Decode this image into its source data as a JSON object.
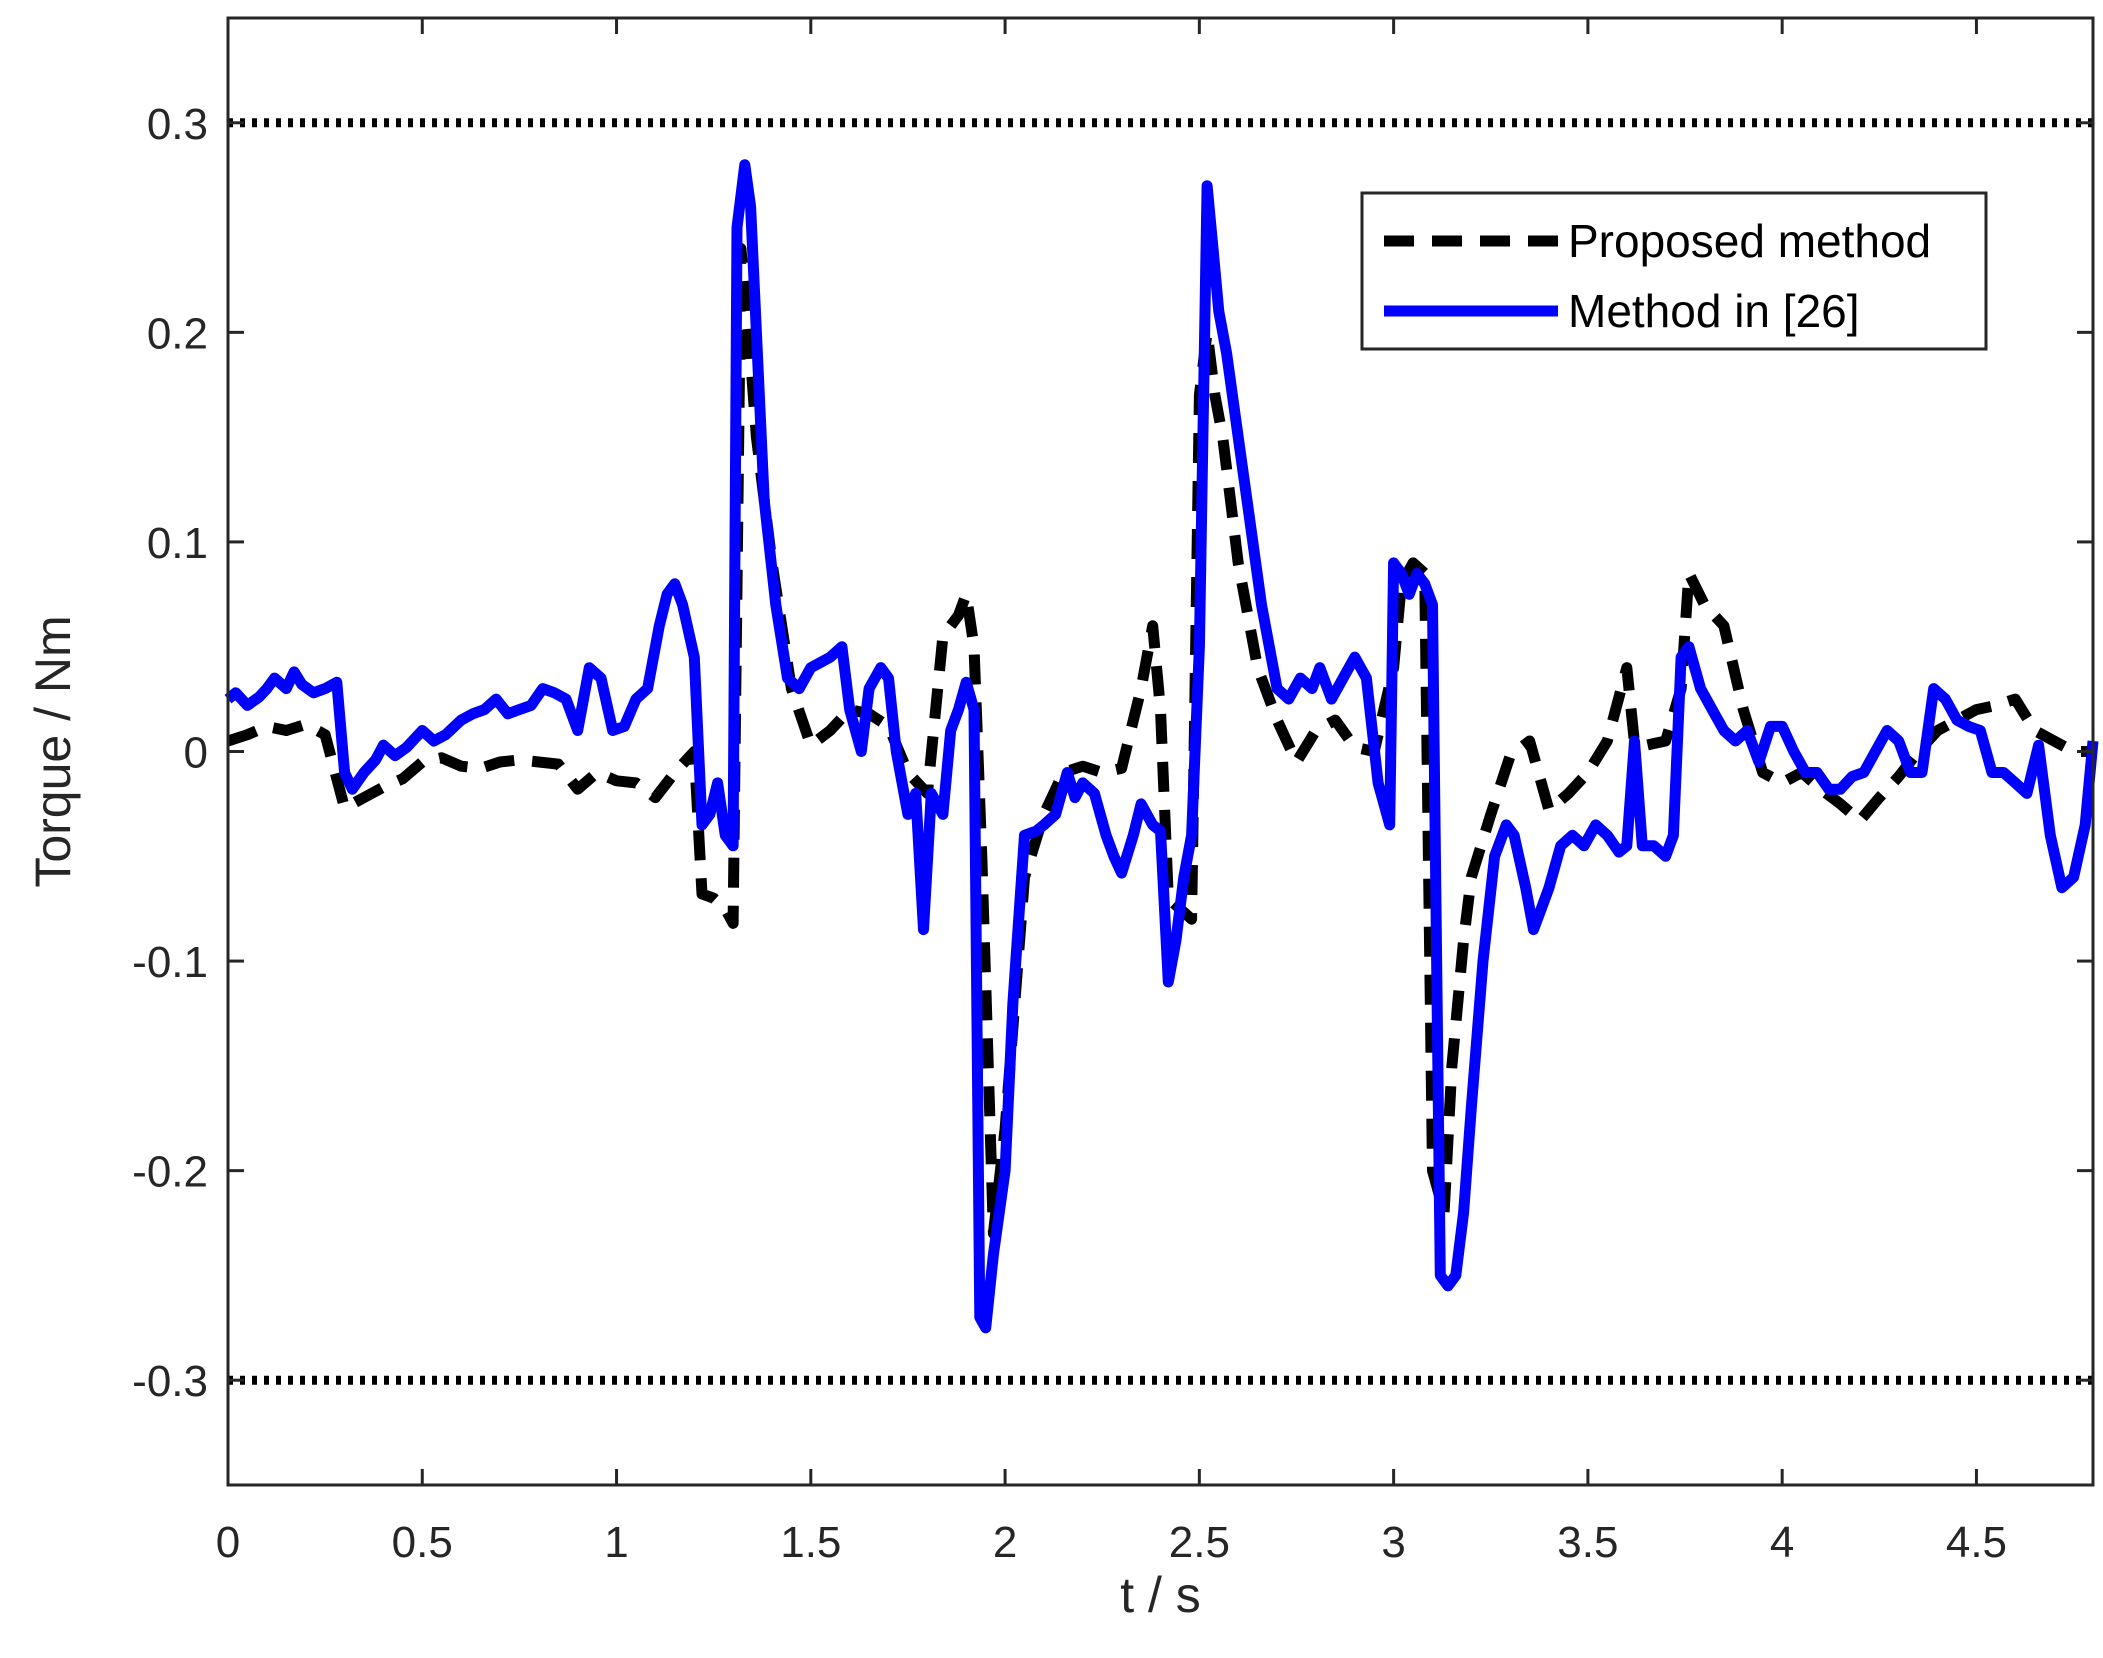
{
  "chart_data": {
    "type": "line",
    "xlabel": "t / s",
    "ylabel": "Torque / Nm",
    "xlim": [
      0,
      4.8
    ],
    "ylim": [
      -0.35,
      0.35
    ],
    "grid": false,
    "legend_position": "top-right",
    "x_ticks": [
      {
        "value": 0,
        "label": "0"
      },
      {
        "value": 0.5,
        "label": "0.5"
      },
      {
        "value": 1,
        "label": "1"
      },
      {
        "value": 1.5,
        "label": "1.5"
      },
      {
        "value": 2,
        "label": "2"
      },
      {
        "value": 2.5,
        "label": "2.5"
      },
      {
        "value": 3,
        "label": "3"
      },
      {
        "value": 3.5,
        "label": "3.5"
      },
      {
        "value": 4,
        "label": "4"
      },
      {
        "value": 4.5,
        "label": "4.5"
      }
    ],
    "y_ticks": [
      {
        "value": 0.3,
        "label": "0.3"
      },
      {
        "value": 0.2,
        "label": "0.2"
      },
      {
        "value": 0.1,
        "label": "0.1"
      },
      {
        "value": 0,
        "label": "0"
      },
      {
        "value": -0.1,
        "label": "-0.1"
      },
      {
        "value": -0.2,
        "label": "-0.2"
      },
      {
        "value": -0.3,
        "label": "-0.3"
      }
    ],
    "reference_lines": [
      {
        "y": 0.3,
        "style": "dotted",
        "color": "#000000"
      },
      {
        "y": -0.3,
        "style": "dotted",
        "color": "#000000"
      }
    ],
    "series": [
      {
        "name": "Proposed method",
        "color": "#000000",
        "style": "dashed",
        "x": [
          0,
          0.05,
          0.1,
          0.15,
          0.2,
          0.25,
          0.3,
          0.35,
          0.4,
          0.45,
          0.5,
          0.55,
          0.6,
          0.65,
          0.7,
          0.75,
          0.8,
          0.85,
          0.9,
          0.95,
          1.0,
          1.05,
          1.1,
          1.15,
          1.2,
          1.22,
          1.25,
          1.28,
          1.3,
          1.32,
          1.34,
          1.36,
          1.4,
          1.45,
          1.5,
          1.55,
          1.6,
          1.65,
          1.7,
          1.75,
          1.8,
          1.84,
          1.88,
          1.9,
          1.92,
          1.94,
          1.97,
          2.0,
          2.05,
          2.1,
          2.15,
          2.2,
          2.25,
          2.3,
          2.35,
          2.38,
          2.4,
          2.42,
          2.45,
          2.48,
          2.5,
          2.52,
          2.54,
          2.56,
          2.6,
          2.65,
          2.7,
          2.75,
          2.8,
          2.85,
          2.9,
          2.95,
          3.0,
          3.02,
          3.05,
          3.08,
          3.1,
          3.13,
          3.15,
          3.18,
          3.2,
          3.25,
          3.3,
          3.35,
          3.4,
          3.45,
          3.5,
          3.55,
          3.6,
          3.62,
          3.65,
          3.7,
          3.74,
          3.76,
          3.8,
          3.85,
          3.9,
          3.95,
          4.0,
          4.05,
          4.1,
          4.15,
          4.2,
          4.25,
          4.3,
          4.35,
          4.4,
          4.45,
          4.5,
          4.55,
          4.6,
          4.65,
          4.7,
          4.75,
          4.8
        ],
        "y": [
          0.005,
          0.008,
          0.012,
          0.01,
          0.013,
          0.008,
          -0.027,
          -0.022,
          -0.017,
          -0.013,
          -0.005,
          -0.003,
          -0.007,
          -0.008,
          -0.005,
          -0.004,
          -0.005,
          -0.006,
          -0.018,
          -0.01,
          -0.014,
          -0.015,
          -0.022,
          -0.01,
          0.0,
          -0.068,
          -0.07,
          -0.075,
          -0.082,
          0.24,
          0.2,
          0.15,
          0.09,
          0.03,
          0.003,
          0.01,
          0.02,
          0.018,
          0.012,
          -0.01,
          -0.02,
          0.055,
          0.065,
          0.075,
          0.05,
          -0.05,
          -0.23,
          -0.18,
          -0.06,
          -0.03,
          -0.01,
          -0.007,
          -0.01,
          -0.008,
          0.03,
          0.06,
          0.02,
          -0.07,
          -0.075,
          -0.08,
          0.17,
          0.2,
          0.17,
          0.15,
          0.09,
          0.04,
          0.015,
          -0.005,
          0.01,
          0.015,
          0.002,
          0.0,
          0.04,
          0.08,
          0.09,
          0.085,
          -0.2,
          -0.22,
          -0.15,
          -0.09,
          -0.06,
          -0.03,
          -0.002,
          0.005,
          -0.028,
          -0.02,
          -0.01,
          0.005,
          0.04,
          0.004,
          0.003,
          0.005,
          0.03,
          0.085,
          0.07,
          0.06,
          0.02,
          -0.01,
          -0.015,
          -0.01,
          -0.018,
          -0.025,
          -0.033,
          -0.022,
          -0.012,
          0.0,
          0.01,
          0.015,
          0.02,
          0.022,
          0.025,
          0.01,
          0.005,
          0.0,
          0.0
        ]
      },
      {
        "name": "Method in [26]",
        "color": "#0000ff",
        "style": "solid",
        "x": [
          0,
          0.02,
          0.05,
          0.08,
          0.1,
          0.12,
          0.15,
          0.17,
          0.19,
          0.22,
          0.25,
          0.28,
          0.3,
          0.32,
          0.35,
          0.38,
          0.4,
          0.43,
          0.46,
          0.5,
          0.53,
          0.56,
          0.6,
          0.63,
          0.66,
          0.69,
          0.72,
          0.75,
          0.78,
          0.81,
          0.84,
          0.87,
          0.9,
          0.93,
          0.96,
          0.99,
          1.02,
          1.05,
          1.08,
          1.11,
          1.13,
          1.15,
          1.17,
          1.2,
          1.22,
          1.24,
          1.26,
          1.28,
          1.3,
          1.31,
          1.33,
          1.345,
          1.36,
          1.38,
          1.41,
          1.44,
          1.47,
          1.5,
          1.52,
          1.55,
          1.58,
          1.6,
          1.63,
          1.65,
          1.68,
          1.7,
          1.72,
          1.75,
          1.77,
          1.79,
          1.81,
          1.84,
          1.86,
          1.88,
          1.9,
          1.92,
          1.935,
          1.95,
          1.97,
          2.0,
          2.02,
          2.05,
          2.08,
          2.1,
          2.13,
          2.16,
          2.18,
          2.2,
          2.23,
          2.26,
          2.28,
          2.3,
          2.33,
          2.35,
          2.38,
          2.4,
          2.42,
          2.44,
          2.46,
          2.48,
          2.5,
          2.52,
          2.535,
          2.55,
          2.57,
          2.6,
          2.63,
          2.66,
          2.7,
          2.73,
          2.76,
          2.79,
          2.81,
          2.84,
          2.87,
          2.9,
          2.93,
          2.96,
          2.99,
          3.0,
          3.02,
          3.04,
          3.06,
          3.08,
          3.1,
          3.12,
          3.14,
          3.16,
          3.18,
          3.2,
          3.23,
          3.26,
          3.29,
          3.31,
          3.34,
          3.36,
          3.38,
          3.4,
          3.43,
          3.46,
          3.49,
          3.52,
          3.55,
          3.58,
          3.6,
          3.62,
          3.64,
          3.67,
          3.7,
          3.72,
          3.74,
          3.76,
          3.79,
          3.82,
          3.85,
          3.88,
          3.91,
          3.94,
          3.97,
          4.0,
          4.03,
          4.06,
          4.09,
          4.12,
          4.15,
          4.18,
          4.21,
          4.24,
          4.27,
          4.3,
          4.33,
          4.36,
          4.39,
          4.42,
          4.45,
          4.48,
          4.51,
          4.54,
          4.57,
          4.6,
          4.63,
          4.66,
          4.69,
          4.72,
          4.75,
          4.78,
          4.8
        ],
        "y": [
          0.025,
          0.028,
          0.022,
          0.026,
          0.03,
          0.035,
          0.03,
          0.038,
          0.032,
          0.028,
          0.03,
          0.033,
          -0.01,
          -0.018,
          -0.01,
          -0.004,
          0.003,
          -0.002,
          0.002,
          0.01,
          0.005,
          0.008,
          0.015,
          0.018,
          0.02,
          0.025,
          0.018,
          0.02,
          0.022,
          0.03,
          0.028,
          0.025,
          0.01,
          0.04,
          0.035,
          0.01,
          0.012,
          0.025,
          0.03,
          0.06,
          0.075,
          0.08,
          0.07,
          0.045,
          -0.035,
          -0.03,
          -0.015,
          -0.04,
          -0.045,
          0.25,
          0.28,
          0.26,
          0.2,
          0.12,
          0.07,
          0.035,
          0.03,
          0.04,
          0.042,
          0.045,
          0.05,
          0.02,
          0.0,
          0.03,
          0.04,
          0.035,
          0.0,
          -0.03,
          -0.02,
          -0.085,
          -0.02,
          -0.03,
          0.01,
          0.02,
          0.033,
          0.02,
          -0.27,
          -0.275,
          -0.24,
          -0.2,
          -0.12,
          -0.04,
          -0.038,
          -0.035,
          -0.03,
          -0.01,
          -0.022,
          -0.015,
          -0.02,
          -0.04,
          -0.05,
          -0.058,
          -0.04,
          -0.025,
          -0.035,
          -0.038,
          -0.11,
          -0.09,
          -0.06,
          -0.04,
          0.05,
          0.27,
          0.24,
          0.21,
          0.19,
          0.15,
          0.11,
          0.07,
          0.03,
          0.025,
          0.035,
          0.03,
          0.04,
          0.025,
          0.035,
          0.045,
          0.035,
          -0.015,
          -0.035,
          0.09,
          0.085,
          0.075,
          0.085,
          0.08,
          0.07,
          -0.25,
          -0.255,
          -0.25,
          -0.22,
          -0.17,
          -0.1,
          -0.05,
          -0.035,
          -0.04,
          -0.065,
          -0.085,
          -0.075,
          -0.065,
          -0.045,
          -0.04,
          -0.045,
          -0.035,
          -0.04,
          -0.048,
          -0.045,
          0.005,
          -0.045,
          -0.045,
          -0.05,
          -0.04,
          0.045,
          0.05,
          0.03,
          0.02,
          0.01,
          0.005,
          0.01,
          -0.005,
          0.012,
          0.012,
          0.0,
          -0.01,
          -0.01,
          -0.018,
          -0.018,
          -0.012,
          -0.01,
          0.0,
          0.01,
          0.005,
          -0.01,
          -0.01,
          0.03,
          0.025,
          0.015,
          0.012,
          0.01,
          -0.01,
          -0.01,
          -0.015,
          -0.02,
          0.003,
          -0.04,
          -0.065,
          -0.06,
          -0.035,
          0.005
        ]
      }
    ]
  }
}
